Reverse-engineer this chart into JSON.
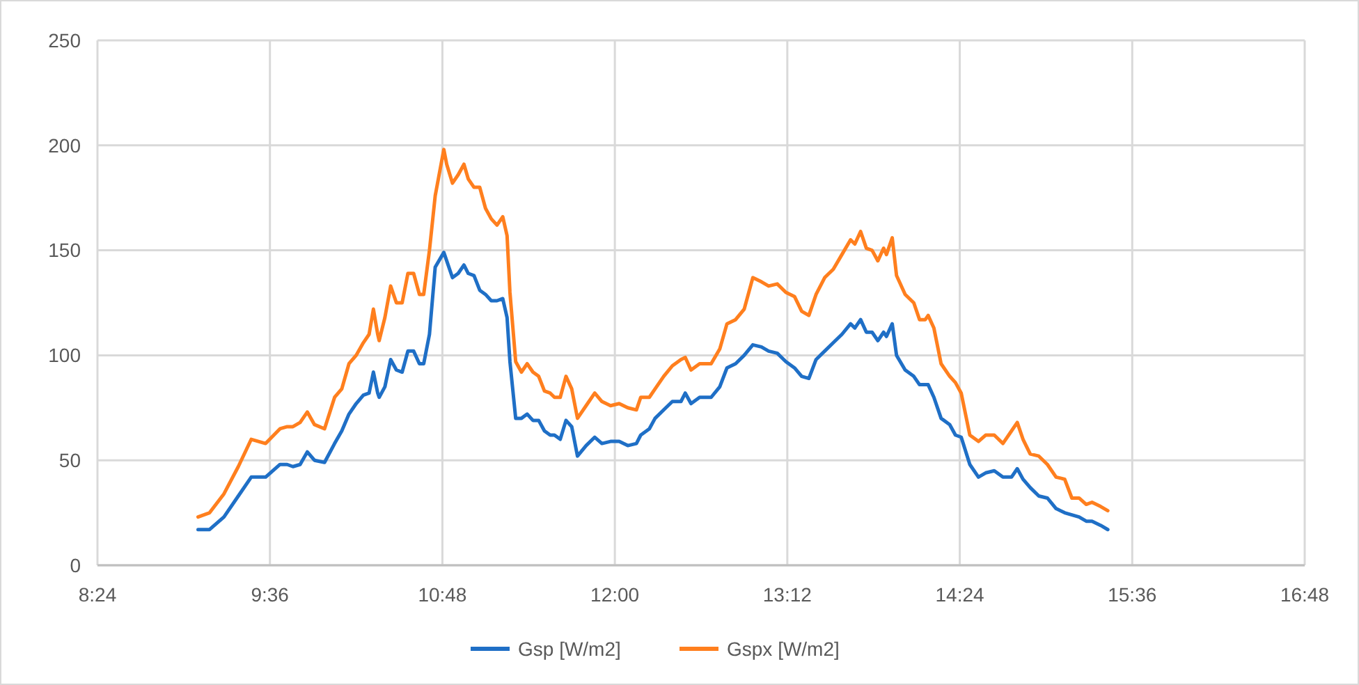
{
  "chart_data": {
    "type": "line",
    "x": [
      9.1,
      9.18,
      9.28,
      9.38,
      9.47,
      9.57,
      9.67,
      9.72,
      9.76,
      9.81,
      9.86,
      9.91,
      9.98,
      10.05,
      10.1,
      10.15,
      10.2,
      10.25,
      10.29,
      10.32,
      10.35,
      10.36,
      10.4,
      10.44,
      10.48,
      10.52,
      10.56,
      10.6,
      10.64,
      10.67,
      10.71,
      10.75,
      10.81,
      10.83,
      10.87,
      10.91,
      10.95,
      10.98,
      11.02,
      11.06,
      11.1,
      11.14,
      11.18,
      11.22,
      11.25,
      11.27,
      11.31,
      11.35,
      11.39,
      11.43,
      11.47,
      11.51,
      11.55,
      11.58,
      11.62,
      11.66,
      11.7,
      11.74,
      11.8,
      11.86,
      11.91,
      11.97,
      12.03,
      12.09,
      12.15,
      12.18,
      12.24,
      12.28,
      12.34,
      12.4,
      12.46,
      12.49,
      12.53,
      12.59,
      12.67,
      12.73,
      12.78,
      12.84,
      12.9,
      12.96,
      13.02,
      13.07,
      13.13,
      13.19,
      13.25,
      13.3,
      13.35,
      13.4,
      13.46,
      13.52,
      13.58,
      13.64,
      13.67,
      13.71,
      13.75,
      13.79,
      13.83,
      13.87,
      13.89,
      13.93,
      13.96,
      14.02,
      14.08,
      14.12,
      14.16,
      14.18,
      14.22,
      14.27,
      14.33,
      14.37,
      14.41,
      14.47,
      14.53,
      14.58,
      14.64,
      14.7,
      14.76,
      14.8,
      14.84,
      14.89,
      14.95,
      15.01,
      15.07,
      15.13,
      15.18,
      15.23,
      15.28,
      15.32,
      15.38,
      15.43
    ],
    "series": [
      {
        "name": "Gsp [W/m2]",
        "color": "#1f6fc6",
        "values": [
          17,
          17,
          23,
          33,
          42,
          42,
          48,
          48,
          47,
          48,
          54,
          50,
          49,
          58,
          64,
          72,
          77,
          81,
          82,
          92,
          82,
          80,
          85,
          98,
          93,
          92,
          102,
          102,
          96,
          96,
          110,
          142,
          149,
          145,
          137,
          139,
          143,
          139,
          138,
          131,
          129,
          126,
          126,
          127,
          118,
          97,
          70,
          70,
          72,
          69,
          69,
          64,
          62,
          62,
          60,
          69,
          66,
          52,
          57,
          61,
          58,
          59,
          59,
          57,
          58,
          62,
          65,
          70,
          74,
          78,
          78,
          82,
          77,
          80,
          80,
          85,
          94,
          96,
          100,
          105,
          104,
          102,
          101,
          97,
          94,
          90,
          89,
          98,
          102,
          106,
          110,
          115,
          113,
          117,
          111,
          111,
          107,
          111,
          109,
          115,
          100,
          93,
          90,
          86,
          86,
          86,
          80,
          70,
          67,
          62,
          61,
          48,
          42,
          44,
          45,
          42,
          42,
          46,
          41,
          37,
          33,
          32,
          27,
          25,
          24,
          23,
          21,
          21,
          19,
          17
        ]
      },
      {
        "name": "Gspx [W/m2]",
        "color": "#ff7f1e",
        "values": [
          23,
          25,
          34,
          47,
          60,
          58,
          65,
          66,
          66,
          68,
          73,
          67,
          65,
          80,
          84,
          96,
          100,
          106,
          110,
          122,
          110,
          107,
          118,
          133,
          125,
          125,
          139,
          139,
          129,
          129,
          150,
          176,
          198,
          191,
          182,
          186,
          191,
          184,
          180,
          180,
          170,
          165,
          162,
          166,
          157,
          130,
          97,
          92,
          96,
          92,
          90,
          83,
          82,
          80,
          80,
          90,
          84,
          70,
          76,
          82,
          78,
          76,
          77,
          75,
          74,
          80,
          80,
          84,
          90,
          95,
          98,
          99,
          93,
          96,
          96,
          103,
          115,
          117,
          122,
          137,
          135,
          133,
          134,
          130,
          128,
          121,
          119,
          129,
          137,
          141,
          148,
          155,
          153,
          159,
          151,
          150,
          145,
          151,
          148,
          156,
          138,
          129,
          125,
          117,
          117,
          119,
          113,
          96,
          90,
          87,
          82,
          62,
          59,
          62,
          62,
          58,
          64,
          68,
          60,
          53,
          52,
          48,
          42,
          41,
          32,
          32,
          29,
          30,
          28,
          26
        ]
      }
    ],
    "xlim": [
      8.4,
      16.8
    ],
    "xticks": [
      {
        "value": 8.4,
        "label": "8:24"
      },
      {
        "value": 9.6,
        "label": "9:36"
      },
      {
        "value": 10.8,
        "label": "10:48"
      },
      {
        "value": 12,
        "label": "12:00"
      },
      {
        "value": 13.2,
        "label": "13:12"
      },
      {
        "value": 14.4,
        "label": "14:24"
      },
      {
        "value": 15.6,
        "label": "15:36"
      },
      {
        "value": 16.8,
        "label": "16:48"
      }
    ],
    "ylim": [
      0,
      250
    ],
    "yticks": [
      0,
      50,
      100,
      150,
      200,
      250
    ],
    "grid": true,
    "legend": "bottom",
    "marker": "none",
    "line_style": "solid"
  }
}
